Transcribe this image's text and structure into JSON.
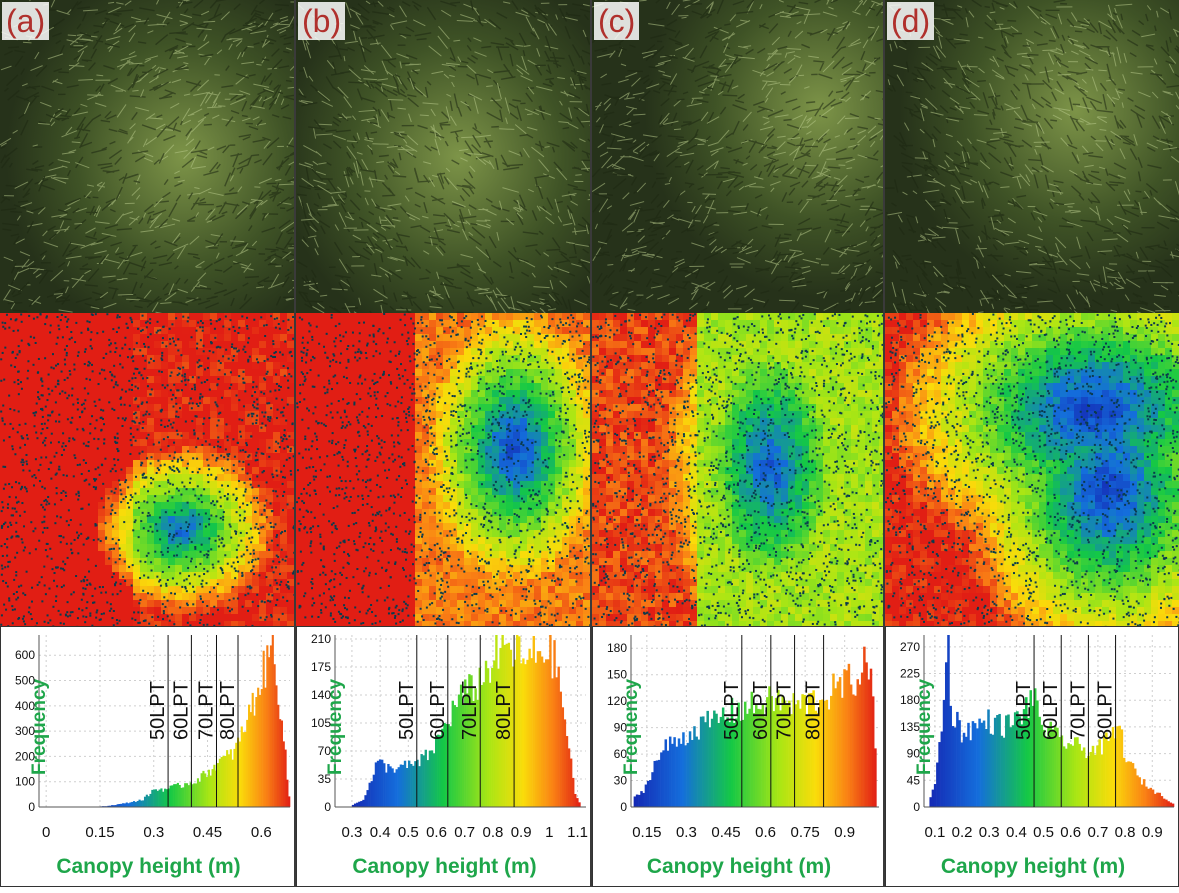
{
  "panels": [
    {
      "label": "(a)"
    },
    {
      "label": "(b)"
    },
    {
      "label": "(c)"
    },
    {
      "label": "(d)"
    }
  ],
  "colors": {
    "label_text": "#b0302c",
    "axis_label": "#1ea64a",
    "grass_dark": "#2f3d1e",
    "grass_light": "#8fa35a"
  },
  "chart_data": [
    {
      "type": "bar",
      "panel": "(a)",
      "xlabel": "Canopy height (m)",
      "ylabel": "Frequency",
      "xlim": [
        -0.02,
        0.68
      ],
      "ylim": [
        0,
        680
      ],
      "xticks": [
        "0",
        "0.15",
        "0.3",
        "0.45",
        "0.6"
      ],
      "xtick_values": [
        0,
        0.15,
        0.3,
        0.45,
        0.6
      ],
      "yticks": [
        "0",
        "100",
        "200",
        "300",
        "400",
        "500",
        "600"
      ],
      "ytick_values": [
        0,
        100,
        200,
        300,
        400,
        500,
        600
      ],
      "thresholds": [
        {
          "label": "50LPT",
          "x": 0.34
        },
        {
          "label": "60LPT",
          "x": 0.405
        },
        {
          "label": "70LPT",
          "x": 0.475
        },
        {
          "label": "80LPT",
          "x": 0.535
        }
      ],
      "profile": [
        [
          0.12,
          0
        ],
        [
          0.17,
          4
        ],
        [
          0.22,
          15
        ],
        [
          0.27,
          30
        ],
        [
          0.3,
          70
        ],
        [
          0.34,
          75
        ],
        [
          0.38,
          90
        ],
        [
          0.42,
          110
        ],
        [
          0.45,
          140
        ],
        [
          0.48,
          180
        ],
        [
          0.52,
          220
        ],
        [
          0.54,
          270
        ],
        [
          0.56,
          360
        ],
        [
          0.58,
          430
        ],
        [
          0.6,
          530
        ],
        [
          0.62,
          600
        ],
        [
          0.63,
          670
        ],
        [
          0.64,
          580
        ],
        [
          0.65,
          440
        ],
        [
          0.66,
          320
        ],
        [
          0.67,
          160
        ],
        [
          0.68,
          0
        ]
      ]
    },
    {
      "type": "bar",
      "panel": "(b)",
      "xlabel": "Canopy height (m)",
      "ylabel": "Frequency",
      "xlim": [
        0.24,
        1.13
      ],
      "ylim": [
        0,
        215
      ],
      "xticks": [
        "0.3",
        "0.4",
        "0.5",
        "0.6",
        "0.7",
        "0.8",
        "0.9",
        "1",
        "1.1"
      ],
      "xtick_values": [
        0.3,
        0.4,
        0.5,
        0.6,
        0.7,
        0.8,
        0.9,
        1.0,
        1.1
      ],
      "yticks": [
        "0",
        "35",
        "70",
        "105",
        "140",
        "175",
        "210"
      ],
      "ytick_values": [
        0,
        35,
        70,
        105,
        140,
        175,
        210
      ],
      "thresholds": [
        {
          "label": "50LPT",
          "x": 0.53
        },
        {
          "label": "60LPT",
          "x": 0.64
        },
        {
          "label": "70LPT",
          "x": 0.755
        },
        {
          "label": "80LPT",
          "x": 0.875
        }
      ],
      "profile": [
        [
          0.3,
          2
        ],
        [
          0.34,
          10
        ],
        [
          0.37,
          35
        ],
        [
          0.39,
          58
        ],
        [
          0.43,
          50
        ],
        [
          0.48,
          52
        ],
        [
          0.53,
          55
        ],
        [
          0.58,
          70
        ],
        [
          0.63,
          105
        ],
        [
          0.68,
          140
        ],
        [
          0.72,
          150
        ],
        [
          0.76,
          165
        ],
        [
          0.8,
          190
        ],
        [
          0.84,
          205
        ],
        [
          0.88,
          200
        ],
        [
          0.92,
          185
        ],
        [
          0.96,
          200
        ],
        [
          1.0,
          205
        ],
        [
          1.03,
          175
        ],
        [
          1.06,
          100
        ],
        [
          1.09,
          20
        ],
        [
          1.11,
          2
        ]
      ]
    },
    {
      "type": "bar",
      "panel": "(c)",
      "xlabel": "Canopy height (m)",
      "ylabel": "Frequency",
      "xlim": [
        0.09,
        1.03
      ],
      "ylim": [
        0,
        195
      ],
      "xticks": [
        "0.15",
        "0.3",
        "0.45",
        "0.6",
        "0.75",
        "0.9"
      ],
      "xtick_values": [
        0.15,
        0.3,
        0.45,
        0.6,
        0.75,
        0.9
      ],
      "yticks": [
        "0",
        "30",
        "60",
        "90",
        "120",
        "150",
        "180"
      ],
      "ytick_values": [
        0,
        30,
        60,
        90,
        120,
        150,
        180
      ],
      "thresholds": [
        {
          "label": "50LPT",
          "x": 0.51
        },
        {
          "label": "60LPT",
          "x": 0.62
        },
        {
          "label": "70LPT",
          "x": 0.71
        },
        {
          "label": "80LPT",
          "x": 0.82
        }
      ],
      "profile": [
        [
          0.1,
          10
        ],
        [
          0.14,
          20
        ],
        [
          0.18,
          50
        ],
        [
          0.22,
          70
        ],
        [
          0.28,
          80
        ],
        [
          0.34,
          92
        ],
        [
          0.4,
          100
        ],
        [
          0.46,
          110
        ],
        [
          0.52,
          115
        ],
        [
          0.58,
          120
        ],
        [
          0.64,
          125
        ],
        [
          0.7,
          118
        ],
        [
          0.76,
          122
        ],
        [
          0.82,
          128
        ],
        [
          0.88,
          140
        ],
        [
          0.94,
          150
        ],
        [
          0.98,
          165
        ],
        [
          1.0,
          180
        ],
        [
          1.02,
          30
        ]
      ]
    },
    {
      "type": "bar",
      "panel": "(d)",
      "xlabel": "Canopy height (m)",
      "ylabel": "Frequency",
      "xlim": [
        0.06,
        0.98
      ],
      "ylim": [
        0,
        290
      ],
      "xticks": [
        "0.1",
        "0.2",
        "0.3",
        "0.4",
        "0.5",
        "0.6",
        "0.7",
        "0.8",
        "0.9"
      ],
      "xtick_values": [
        0.1,
        0.2,
        0.3,
        0.4,
        0.5,
        0.6,
        0.7,
        0.8,
        0.9
      ],
      "yticks": [
        "0",
        "45",
        "90",
        "135",
        "180",
        "225",
        "270"
      ],
      "ytick_values": [
        0,
        45,
        90,
        135,
        180,
        225,
        270
      ],
      "thresholds": [
        {
          "label": "50LPT",
          "x": 0.465
        },
        {
          "label": "60LPT",
          "x": 0.565
        },
        {
          "label": "70LPT",
          "x": 0.665
        },
        {
          "label": "80LPT",
          "x": 0.765
        }
      ],
      "profile": [
        [
          0.08,
          10
        ],
        [
          0.1,
          40
        ],
        [
          0.12,
          120
        ],
        [
          0.14,
          230
        ],
        [
          0.15,
          290
        ],
        [
          0.16,
          170
        ],
        [
          0.2,
          130
        ],
        [
          0.25,
          140
        ],
        [
          0.3,
          150
        ],
        [
          0.35,
          140
        ],
        [
          0.4,
          150
        ],
        [
          0.44,
          175
        ],
        [
          0.46,
          190
        ],
        [
          0.5,
          140
        ],
        [
          0.55,
          120
        ],
        [
          0.6,
          110
        ],
        [
          0.65,
          100
        ],
        [
          0.7,
          100
        ],
        [
          0.75,
          120
        ],
        [
          0.78,
          140
        ],
        [
          0.8,
          90
        ],
        [
          0.85,
          50
        ],
        [
          0.9,
          30
        ],
        [
          0.95,
          15
        ],
        [
          0.98,
          5
        ]
      ]
    }
  ]
}
